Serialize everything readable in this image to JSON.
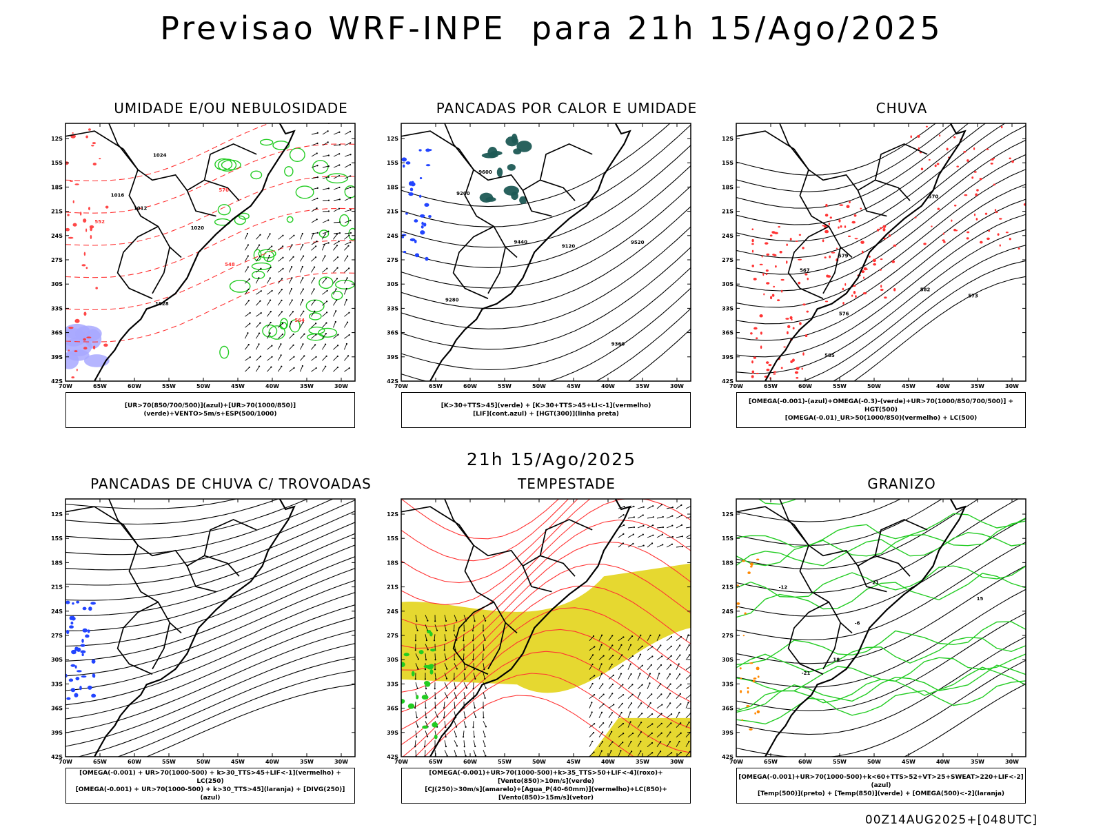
{
  "header": {
    "title": "Previsao WRF-INPE  para 21h 15/Ago/2025",
    "subtitle": "21h 15/Ago/2025",
    "footer": "00Z14AUG2025+[048UTC]"
  },
  "axes": {
    "lat_ticks": [
      "12S",
      "15S",
      "18S",
      "21S",
      "24S",
      "27S",
      "30S",
      "33S",
      "36S",
      "39S",
      "42S"
    ],
    "lon_ticks": [
      "70W",
      "65W",
      "60W",
      "55W",
      "50W",
      "45W",
      "40W",
      "35W",
      "30W"
    ]
  },
  "panels": [
    {
      "title": "UMIDADE E/OU NEBULOSIDADE",
      "legend": [
        "[UR>70(850/700/500)](azul)+[UR>70(1000/850)](verde)+VENTO>5m/s+ESP(500/1000)"
      ],
      "contour_labels": [
        "1012",
        "1016",
        "1020",
        "1024",
        "1028",
        "570",
        "552",
        "548",
        "564"
      ]
    },
    {
      "title": "PANCADAS POR CALOR E UMIDADE",
      "legend": [
        "[K>30+TTS>45](verde) + [K>30+TTS>45+LI<-1](vermelho)",
        "[LIF](cont.azul) + [HGT(300)](linha preta)"
      ],
      "contour_labels": [
        "9600",
        "9520",
        "9440",
        "9360",
        "9280",
        "9200",
        "9120"
      ]
    },
    {
      "title": "CHUVA",
      "legend": [
        "[OMEGA(-0.001)-(azul)+OMEGA(-0.3)-(verde)+UR>70(1000/850/700/500)] + HGT(500)",
        "[OMEGA(-0.01)_UR>50(1000/850)(vermelho) + LC(500)"
      ],
      "contour_labels": [
        "585",
        "582",
        "579",
        "576",
        "573",
        "570",
        "567"
      ]
    },
    {
      "title": "PANCADAS DE CHUVA C/ TROVOADAS",
      "legend": [
        "[OMEGA(-0.001) + UR>70(1000-500) + k>30_TTS>45+LIF<-1](vermelho) + LC(250)",
        "[OMEGA(-0.001) + UR>70(1000-500) + k>30_TTS>45](laranja) + [DIVG(250)](azul)"
      ],
      "contour_labels": []
    },
    {
      "title": "TEMPESTADE",
      "legend": [
        "[OMEGA(-0.001)+UR>70(1000-500)+k>35_TTS>50+LIF<-4](roxo)+[Vento(850)>10m/s](verde)",
        "[CJ(250)>30m/s](amarelo)+[Agua_P(40-60mm)](vermelho)+LC(850)+[Vento(850)>15m/s](vetor)"
      ],
      "contour_labels": []
    },
    {
      "title": "GRANIZO",
      "legend": [
        "[OMEGA(-0.001)+UR>70(1000-500)+k<60+TTS>52+VT>25+SWEAT>220+LIF<-2](azul)",
        "[Temp(500)](preto) + [Temp(850)](verde) + [OMEGA(500)<-2](laranja)"
      ],
      "contour_labels": [
        "-6",
        "-12",
        "-21",
        "15",
        "18",
        "21"
      ]
    }
  ],
  "colors": {
    "humid_blue": "#a8a8ff",
    "humid_green": "#22cc22",
    "contour_red": "#ff3333",
    "lif_blue": "#2244ff",
    "teal": "#1e5a55",
    "jet_yellow": "#e6d830",
    "orange": "#ff8800"
  }
}
